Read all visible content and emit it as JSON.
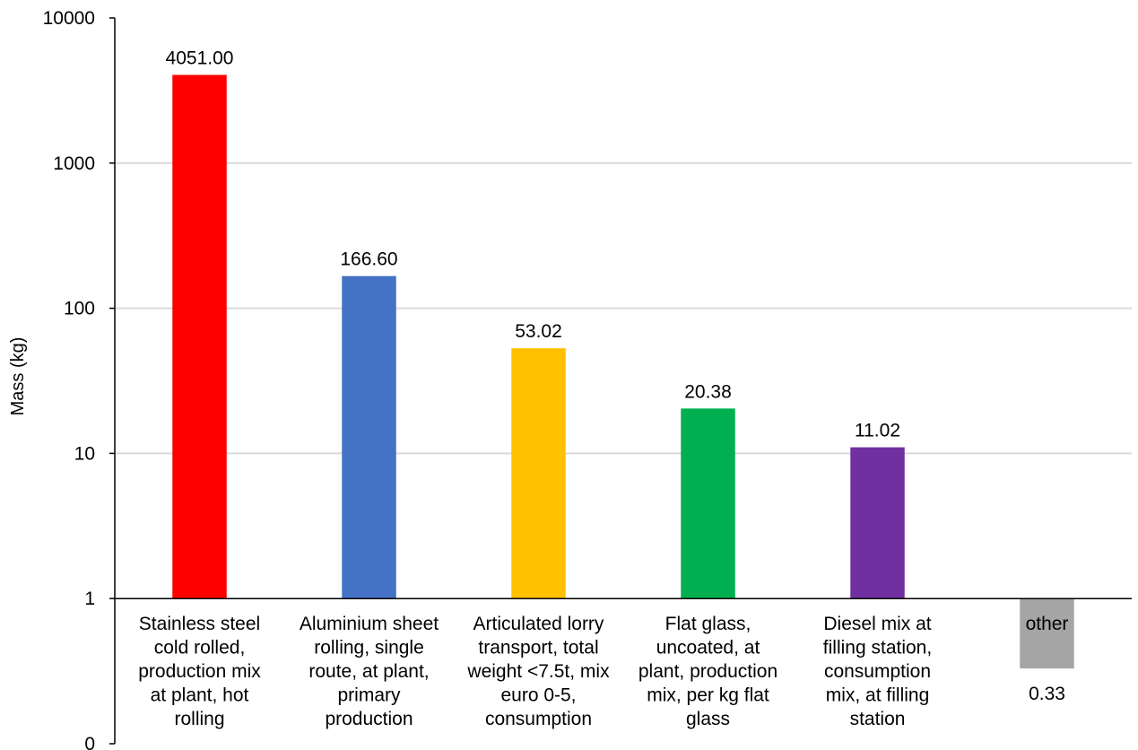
{
  "chart_data": {
    "type": "bar",
    "title": "",
    "xlabel": "",
    "ylabel": "Mass (kg)",
    "yscale": "log",
    "ylim": [
      0.1,
      10000
    ],
    "grid": true,
    "legend": "none",
    "yticks": [
      {
        "value": 10000,
        "label": "10000"
      },
      {
        "value": 1000,
        "label": "1000"
      },
      {
        "value": 100,
        "label": "100"
      },
      {
        "value": 10,
        "label": "10"
      },
      {
        "value": 1,
        "label": "1"
      },
      {
        "value": 0.1,
        "label": "0"
      }
    ],
    "categories": [
      [
        "Stainless steel",
        "cold rolled,",
        "production mix",
        "at plant, hot",
        "rolling"
      ],
      [
        "Aluminium sheet",
        "rolling, single",
        "route, at plant,",
        "primary",
        "production"
      ],
      [
        "Articulated lorry",
        "transport, total",
        "weight <7.5t, mix",
        "euro 0-5,",
        "consumption"
      ],
      [
        "Flat glass,",
        "uncoated, at",
        "plant, production",
        "mix, per kg flat",
        "glass"
      ],
      [
        "Diesel mix at",
        "filling station,",
        "consumption",
        "mix, at filling",
        "station"
      ],
      [
        "other"
      ]
    ],
    "values": [
      4051.0,
      166.6,
      53.02,
      20.38,
      11.02,
      0.33
    ],
    "value_labels": [
      "4051.00",
      "166.60",
      "53.02",
      "20.38",
      "11.02",
      "0.33"
    ],
    "colors": [
      "#ff0000",
      "#4472c4",
      "#ffc000",
      "#00b050",
      "#7030a0",
      "#a5a5a5"
    ],
    "gridline_color": "#d9d9d9",
    "axis_color": "#000000"
  }
}
